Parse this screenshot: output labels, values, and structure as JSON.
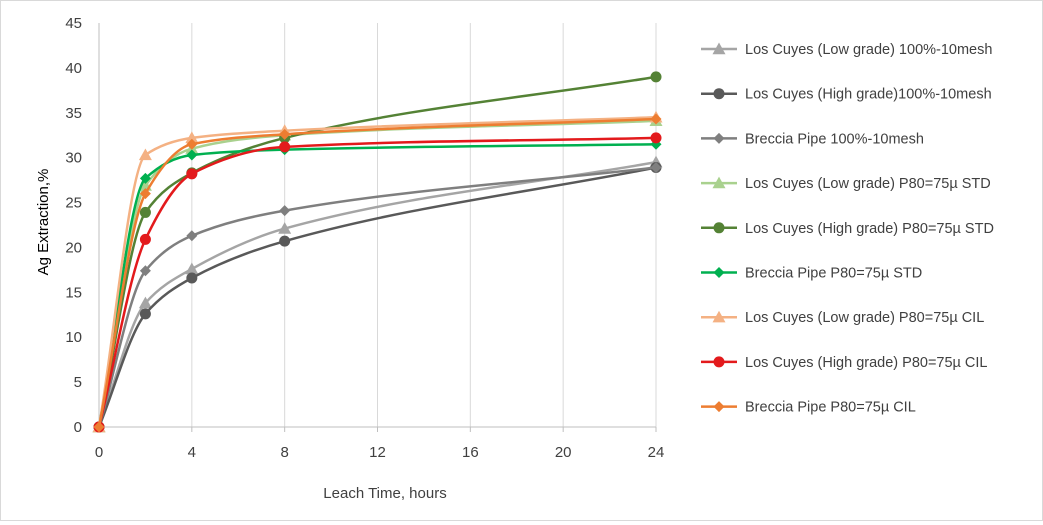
{
  "chart_data": {
    "type": "line",
    "title": "",
    "xlabel": "Leach Time, hours",
    "ylabel": "Ag Extraction,%",
    "xlim": [
      0,
      24
    ],
    "ylim": [
      0,
      45
    ],
    "xticks": [
      0,
      4,
      8,
      12,
      16,
      20,
      24
    ],
    "yticks": [
      0,
      5,
      10,
      15,
      20,
      25,
      30,
      35,
      40,
      45
    ],
    "grid": "vertical",
    "legend_position": "right",
    "smooth": true,
    "x": [
      0,
      2,
      4,
      8,
      24
    ],
    "series": [
      {
        "name": "Los Cuyes (Low grade) 100%-10mesh",
        "color": "#a5a5a5",
        "marker": "triangle",
        "values": [
          0,
          13.8,
          17.6,
          22.1,
          29.5
        ]
      },
      {
        "name": "Los Cuyes (High grade)100%-10mesh",
        "color": "#595959",
        "marker": "circle",
        "values": [
          0,
          12.6,
          16.6,
          20.7,
          28.9
        ]
      },
      {
        "name": "Breccia Pipe 100%-10mesh",
        "color": "#7f7f7f",
        "marker": "diamond",
        "values": [
          0,
          17.4,
          21.3,
          24.1,
          28.9
        ]
      },
      {
        "name": "Los Cuyes (Low grade) P80=75µ STD",
        "color": "#a9d18e",
        "marker": "triangle",
        "values": [
          0,
          26.9,
          31.0,
          32.5,
          34.1
        ]
      },
      {
        "name": "Los Cuyes (High grade) P80=75µ STD",
        "color": "#548235",
        "marker": "circle",
        "values": [
          0,
          23.9,
          28.3,
          32.2,
          39.0
        ]
      },
      {
        "name": "Breccia Pipe P80=75µ STD",
        "color": "#00b050",
        "marker": "diamond",
        "values": [
          0,
          27.7,
          30.3,
          30.9,
          31.5
        ]
      },
      {
        "name": "Los Cuyes (Low grade) P80=75µ CIL",
        "color": "#f4b183",
        "marker": "triangle",
        "values": [
          0,
          30.3,
          32.2,
          33.0,
          34.5
        ]
      },
      {
        "name": "Los Cuyes (High grade) P80=75µ CIL",
        "color": "#e31a1c",
        "marker": "circle",
        "values": [
          0,
          20.9,
          28.2,
          31.2,
          32.2
        ]
      },
      {
        "name": "Breccia Pipe P80=75µ CIL",
        "color": "#ed7d31",
        "marker": "diamond",
        "values": [
          0,
          26.0,
          31.5,
          32.6,
          34.3
        ]
      }
    ]
  }
}
